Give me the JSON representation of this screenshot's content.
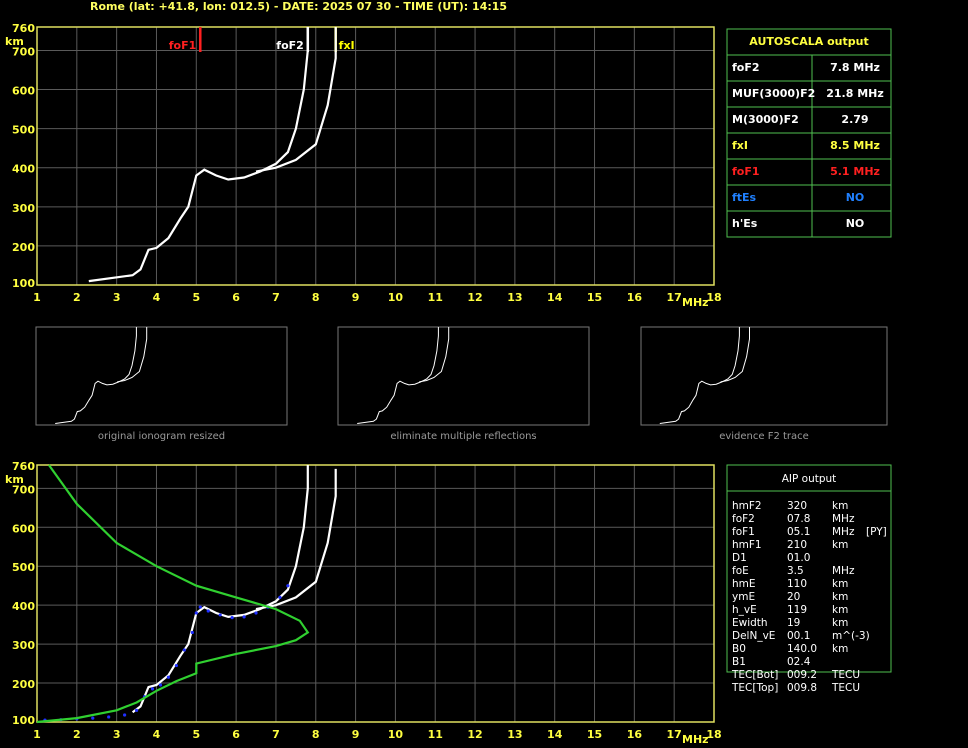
{
  "header": {
    "title": "Rome (lat: +41.8, lon: 012.5) - DATE: 2025 07 30 - TIME (UT): 14:15"
  },
  "chart_data": [
    {
      "type": "line",
      "x_label": "MHz",
      "y_label": "km",
      "xlim": [
        1,
        18
      ],
      "ylim": [
        100,
        760
      ],
      "xticks": [
        1,
        2,
        3,
        4,
        5,
        6,
        7,
        8,
        9,
        10,
        11,
        12,
        13,
        14,
        15,
        16,
        17,
        18
      ],
      "yticks": [
        100,
        200,
        300,
        400,
        500,
        600,
        700,
        760
      ],
      "grid": true,
      "markers": [
        {
          "name": "foF1",
          "value": 5.1,
          "color": "#ff2020"
        },
        {
          "name": "foF2",
          "value": 7.8,
          "color": "#ffffff"
        },
        {
          "name": "fxI",
          "value": 8.5,
          "color": "#ffff00"
        }
      ],
      "series": [
        {
          "color": "#ffffff",
          "mode": "line",
          "x": [
            2.3,
            3.4,
            3.6,
            3.8,
            4.0,
            4.3,
            4.6,
            4.8,
            5.0,
            5.2,
            5.5,
            5.8,
            6.2,
            6.6,
            7.0,
            7.3,
            7.5,
            7.7,
            7.8,
            7.8
          ],
          "values": [
            110,
            125,
            140,
            190,
            195,
            220,
            270,
            300,
            380,
            395,
            380,
            370,
            375,
            390,
            410,
            440,
            500,
            600,
            700,
            760
          ]
        },
        {
          "color": "#ffffff",
          "mode": "line",
          "x": [
            6.5,
            7.0,
            7.5,
            8.0,
            8.3,
            8.5,
            8.5
          ],
          "values": [
            390,
            400,
            420,
            460,
            560,
            680,
            760
          ]
        }
      ]
    },
    {
      "type": "line",
      "x_label": "MHz",
      "y_label": "km",
      "xlim": [
        1,
        18
      ],
      "ylim": [
        100,
        760
      ],
      "xticks": [
        1,
        2,
        3,
        4,
        5,
        6,
        7,
        8,
        9,
        10,
        11,
        12,
        13,
        14,
        15,
        16,
        17,
        18
      ],
      "yticks": [
        100,
        200,
        300,
        400,
        500,
        600,
        700,
        760
      ],
      "grid": true,
      "series": [
        {
          "color": "#ffffff",
          "mode": "line",
          "x": [
            3.4,
            3.6,
            3.8,
            4.0,
            4.3,
            4.6,
            4.8,
            5.0,
            5.2,
            5.5,
            5.8,
            6.2,
            6.6,
            7.0,
            7.3,
            7.5,
            7.7,
            7.8,
            7.8
          ],
          "values": [
            125,
            140,
            190,
            195,
            220,
            270,
            300,
            380,
            395,
            380,
            370,
            375,
            390,
            410,
            440,
            500,
            600,
            700,
            760
          ]
        },
        {
          "color": "#ffffff",
          "mode": "line",
          "x": [
            6.5,
            7.0,
            7.5,
            8.0,
            8.3,
            8.5,
            8.5
          ],
          "values": [
            390,
            400,
            420,
            460,
            560,
            680,
            750
          ]
        },
        {
          "color": "#2030ff",
          "mode": "points",
          "x": [
            1.2,
            1.6,
            2.0,
            2.4,
            2.8,
            3.2,
            3.5,
            3.7,
            3.9,
            4.1,
            4.3,
            4.5,
            4.7,
            4.9,
            5.0,
            5.1,
            5.3,
            5.6,
            5.9,
            6.2,
            6.5,
            6.8,
            7.1,
            7.3
          ],
          "values": [
            105,
            106,
            108,
            110,
            113,
            118,
            130,
            165,
            185,
            195,
            215,
            245,
            285,
            330,
            380,
            395,
            385,
            375,
            368,
            370,
            380,
            395,
            420,
            450
          ]
        },
        {
          "color": "#30d030",
          "mode": "line",
          "x": [
            1.3,
            2.0,
            3.0,
            4.0,
            5.0,
            6.0,
            7.0,
            7.6,
            7.8,
            7.5,
            7.0,
            6.0,
            5.0,
            5.0,
            4.5,
            4.0,
            3.5,
            3.0,
            2.0,
            1.0
          ],
          "values": [
            760,
            660,
            560,
            500,
            450,
            420,
            390,
            360,
            330,
            310,
            295,
            275,
            250,
            225,
            205,
            180,
            150,
            130,
            110,
            100
          ]
        }
      ]
    }
  ],
  "thumbnails": [
    "original ionogram resized",
    "eliminate multiple reflections",
    "evidence F2 trace"
  ],
  "autoscala": {
    "title": "AUTOSCALA output",
    "rows": [
      {
        "label": "foF2",
        "value": "7.8 MHz",
        "color": "#ffffff"
      },
      {
        "label": "MUF(3000)F2",
        "value": "21.8 MHz",
        "color": "#ffffff"
      },
      {
        "label": "M(3000)F2",
        "value": "2.79",
        "color": "#ffffff"
      },
      {
        "label": "fxI",
        "value": "8.5 MHz",
        "color": "#ffff40"
      },
      {
        "label": "foF1",
        "value": "5.1 MHz",
        "color": "#ff2020"
      },
      {
        "label": "ftEs",
        "value": "NO",
        "color": "#2080ff"
      },
      {
        "label": "h'Es",
        "value": "NO",
        "color": "#ffffff"
      }
    ]
  },
  "aip": {
    "title": "AIP output",
    "rows": [
      {
        "label": "hmF2",
        "value": "320",
        "unit": "km"
      },
      {
        "label": "foF2",
        "value": "07.8",
        "unit": "MHz"
      },
      {
        "label": "foF1",
        "value": "05.1",
        "unit": "MHz",
        "note": "[PY]"
      },
      {
        "label": "hmF1",
        "value": "210",
        "unit": "km"
      },
      {
        "label": "D1",
        "value": "01.0"
      },
      {
        "label": "foE",
        "value": "3.5",
        "unit": "MHz"
      },
      {
        "label": "hmE",
        "value": "110",
        "unit": "km"
      },
      {
        "label": "ymE",
        "value": "20",
        "unit": "km"
      },
      {
        "label": "h_vE",
        "value": "119",
        "unit": "km"
      },
      {
        "label": "Ewidth",
        "value": "19",
        "unit": "km"
      },
      {
        "label": "DelN_vE",
        "value": "00.1",
        "unit": "m^(-3)"
      },
      {
        "label": "B0",
        "value": "140.0",
        "unit": "km"
      },
      {
        "label": "B1",
        "value": "02.4"
      },
      {
        "label": "TEC[Bot]",
        "value": "009.2",
        "unit": "TECU"
      },
      {
        "label": "TEC[Top]",
        "value": "009.8",
        "unit": "TECU"
      }
    ]
  }
}
